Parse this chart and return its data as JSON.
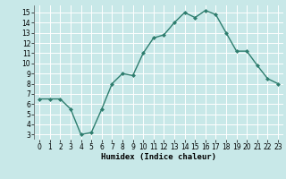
{
  "x": [
    0,
    1,
    2,
    3,
    4,
    5,
    6,
    7,
    8,
    9,
    10,
    11,
    12,
    13,
    14,
    15,
    16,
    17,
    18,
    19,
    20,
    21,
    22,
    23
  ],
  "y": [
    6.5,
    6.5,
    6.5,
    5.5,
    3.0,
    3.2,
    5.5,
    8.0,
    9.0,
    8.8,
    11.0,
    12.5,
    12.8,
    14.0,
    15.0,
    14.5,
    15.2,
    14.8,
    13.0,
    11.2,
    11.2,
    9.8,
    8.5,
    8.0
  ],
  "line_color": "#2e7d6e",
  "marker": "D",
  "marker_size": 2.0,
  "bg_color": "#c8e8e8",
  "grid_color": "#ffffff",
  "xlabel": "Humidex (Indice chaleur)",
  "xlim": [
    -0.5,
    23.5
  ],
  "ylim": [
    2.5,
    15.7
  ],
  "yticks": [
    3,
    4,
    5,
    6,
    7,
    8,
    9,
    10,
    11,
    12,
    13,
    14,
    15
  ],
  "xticks": [
    0,
    1,
    2,
    3,
    4,
    5,
    6,
    7,
    8,
    9,
    10,
    11,
    12,
    13,
    14,
    15,
    16,
    17,
    18,
    19,
    20,
    21,
    22,
    23
  ],
  "tick_fontsize": 5.5,
  "xlabel_fontsize": 6.5,
  "line_width": 1.0
}
